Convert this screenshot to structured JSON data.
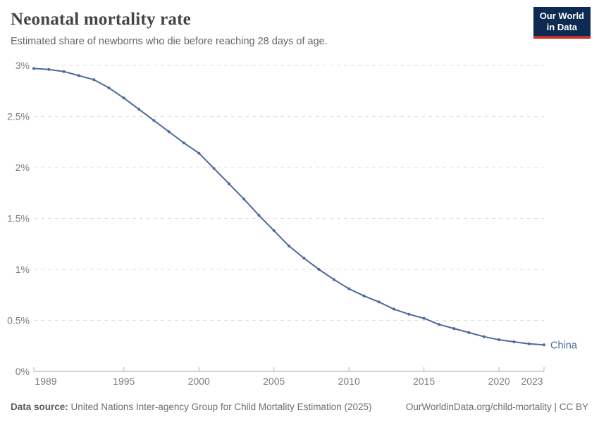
{
  "header": {
    "title": "Neonatal mortality rate",
    "subtitle": "Estimated share of newborns who die before reaching 28 days of age."
  },
  "logo": {
    "line1": "Our World",
    "line2": "in Data",
    "bg_color": "#0d2a52",
    "accent_color": "#c4322b"
  },
  "chart_data": {
    "type": "line",
    "title": "Neonatal mortality rate",
    "xlabel": "",
    "ylabel": "",
    "xlim": [
      1989,
      2023
    ],
    "ylim": [
      0,
      3
    ],
    "grid": "horizontal-dashed",
    "legend_position": "end-of-line-label",
    "unit": "%",
    "yticks": [
      {
        "v": 0,
        "label": "0%"
      },
      {
        "v": 0.5,
        "label": "0.5%"
      },
      {
        "v": 1,
        "label": "1%"
      },
      {
        "v": 1.5,
        "label": "1.5%"
      },
      {
        "v": 2,
        "label": "2%"
      },
      {
        "v": 2.5,
        "label": "2.5%"
      },
      {
        "v": 3,
        "label": "3%"
      }
    ],
    "xticks": [
      {
        "v": 1989,
        "label": "1989"
      },
      {
        "v": 1995,
        "label": "1995"
      },
      {
        "v": 2000,
        "label": "2000"
      },
      {
        "v": 2005,
        "label": "2005"
      },
      {
        "v": 2010,
        "label": "2010"
      },
      {
        "v": 2015,
        "label": "2015"
      },
      {
        "v": 2020,
        "label": "2020"
      },
      {
        "v": 2023,
        "label": "2023"
      }
    ],
    "series": [
      {
        "name": "China",
        "color": "#4C6A9C",
        "years": [
          1989,
          1990,
          1991,
          1992,
          1993,
          1994,
          1995,
          1996,
          1997,
          1998,
          1999,
          2000,
          2001,
          2002,
          2003,
          2004,
          2005,
          2006,
          2007,
          2008,
          2009,
          2010,
          2011,
          2012,
          2013,
          2014,
          2015,
          2016,
          2017,
          2018,
          2019,
          2020,
          2021,
          2022,
          2023
        ],
        "values": [
          2.97,
          2.96,
          2.94,
          2.9,
          2.86,
          2.78,
          2.68,
          2.57,
          2.46,
          2.35,
          2.24,
          2.14,
          1.99,
          1.84,
          1.69,
          1.53,
          1.38,
          1.23,
          1.11,
          1.0,
          0.9,
          0.81,
          0.74,
          0.68,
          0.61,
          0.56,
          0.52,
          0.46,
          0.42,
          0.38,
          0.34,
          0.31,
          0.29,
          0.27,
          0.26
        ]
      }
    ]
  },
  "footer": {
    "datasource_label": "Data source:",
    "datasource_text": "United Nations Inter-agency Group for Child Mortality Estimation (2025)",
    "attribution": "OurWorldinData.org/child-mortality | CC BY"
  },
  "colors": {
    "line": "#4C6A9C",
    "gridline": "#dcdcdc",
    "axis": "#a5a5a5",
    "tick_label": "#7c7c7c",
    "title": "#454545",
    "subtitle": "#666667"
  }
}
